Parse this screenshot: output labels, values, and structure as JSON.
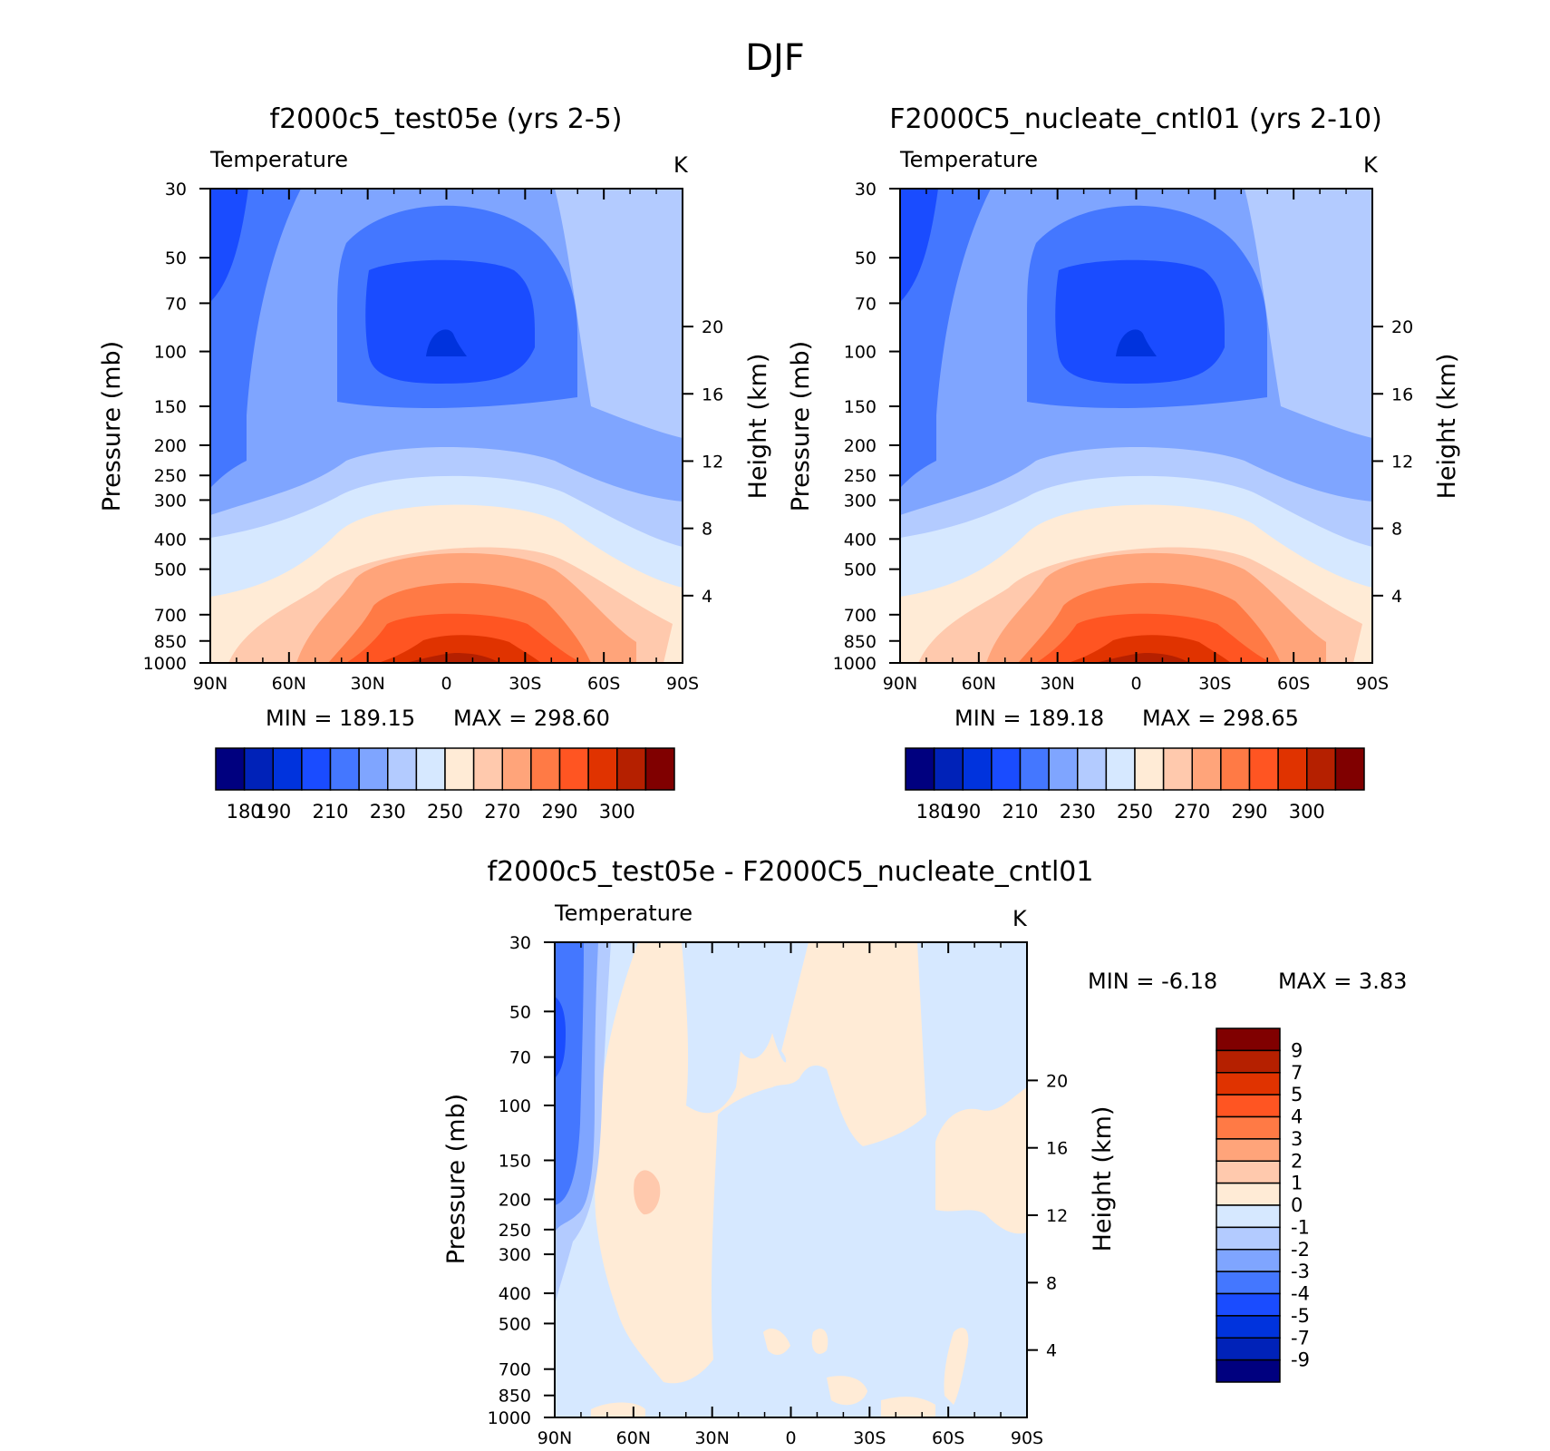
{
  "figure_title": "DJF",
  "chart_data": [
    {
      "type": "heatmap",
      "panel": "top-left",
      "title": "f2000c5_test05e (yrs 2-5)",
      "variable": "Temperature",
      "units": "K",
      "xlabel": "",
      "ylabel": "Pressure (mb)",
      "ylabel_right": "Height (km)",
      "x_ticks": [
        "90N",
        "60N",
        "30N",
        "0",
        "30S",
        "60S",
        "90S"
      ],
      "y_ticks": [
        "30",
        "50",
        "70",
        "100",
        "150",
        "200",
        "250",
        "300",
        "400",
        "500",
        "700",
        "850",
        "1000"
      ],
      "y_ticks_right": [
        "20",
        "16",
        "12",
        "8",
        "4"
      ],
      "min_label": "MIN = 189.15",
      "max_label": "MAX = 298.60",
      "min": 189.15,
      "max": 298.6,
      "colorbar": {
        "orientation": "horizontal",
        "tick_labels": [
          "180",
          "190",
          "210",
          "230",
          "250",
          "270",
          "290",
          "300"
        ],
        "colors": [
          "#00007f",
          "#0022b8",
          "#0033dd",
          "#1a4cff",
          "#4477ff",
          "#7fa5ff",
          "#b3cbff",
          "#d6e8ff",
          "#ffebd6",
          "#ffc9ad",
          "#ffa47a",
          "#ff7a45",
          "#ff5522",
          "#e03300",
          "#b52000",
          "#800000"
        ]
      },
      "field": {
        "pattern": "full",
        "cold_core_lat": 0,
        "cold_core_value": 189.15,
        "surface_max_value": 298.6
      }
    },
    {
      "type": "heatmap",
      "panel": "top-right",
      "title": "F2000C5_nucleate_cntl01 (yrs 2-10)",
      "variable": "Temperature",
      "units": "K",
      "xlabel": "",
      "ylabel": "Pressure (mb)",
      "ylabel_right": "Height (km)",
      "x_ticks": [
        "90N",
        "60N",
        "30N",
        "0",
        "30S",
        "60S",
        "90S"
      ],
      "y_ticks": [
        "30",
        "50",
        "70",
        "100",
        "150",
        "200",
        "250",
        "300",
        "400",
        "500",
        "700",
        "850",
        "1000"
      ],
      "y_ticks_right": [
        "20",
        "16",
        "12",
        "8",
        "4"
      ],
      "min_label": "MIN = 189.18",
      "max_label": "MAX = 298.65",
      "min": 189.18,
      "max": 298.65,
      "colorbar": {
        "orientation": "horizontal",
        "tick_labels": [
          "180",
          "190",
          "210",
          "230",
          "250",
          "270",
          "290",
          "300"
        ],
        "colors": [
          "#00007f",
          "#0022b8",
          "#0033dd",
          "#1a4cff",
          "#4477ff",
          "#7fa5ff",
          "#b3cbff",
          "#d6e8ff",
          "#ffebd6",
          "#ffc9ad",
          "#ffa47a",
          "#ff7a45",
          "#ff5522",
          "#e03300",
          "#b52000",
          "#800000"
        ]
      },
      "field": {
        "pattern": "full",
        "cold_core_lat": 0,
        "cold_core_value": 189.18,
        "surface_max_value": 298.65
      }
    },
    {
      "type": "heatmap",
      "panel": "bottom",
      "title": "f2000c5_test05e - F2000C5_nucleate_cntl01",
      "variable": "Temperature",
      "units": "K",
      "xlabel": "",
      "ylabel": "Pressure (mb)",
      "ylabel_right": "Height (km)",
      "x_ticks": [
        "90N",
        "60N",
        "30N",
        "0",
        "30S",
        "60S",
        "90S"
      ],
      "y_ticks": [
        "30",
        "50",
        "70",
        "100",
        "150",
        "200",
        "250",
        "300",
        "400",
        "500",
        "700",
        "850",
        "1000"
      ],
      "y_ticks_right": [
        "20",
        "16",
        "12",
        "8",
        "4"
      ],
      "min_label": "MIN = -6.18",
      "max_label": "MAX = 3.83",
      "min": -6.18,
      "max": 3.83,
      "colorbar": {
        "orientation": "vertical",
        "tick_labels": [
          "9",
          "7",
          "5",
          "4",
          "3",
          "2",
          "1",
          "0",
          "-1",
          "-2",
          "-3",
          "-4",
          "-5",
          "-7",
          "-9"
        ],
        "colors": [
          "#800000",
          "#b52000",
          "#e03300",
          "#ff5522",
          "#ff7a45",
          "#ffa47a",
          "#ffc9ad",
          "#ffebd6",
          "#d6e8ff",
          "#b3cbff",
          "#7fa5ff",
          "#4477ff",
          "#1a4cff",
          "#0033dd",
          "#0022b8",
          "#00007f"
        ]
      },
      "field": {
        "pattern": "difference",
        "background": "#d6e8ff",
        "positive_fill": "#ffebd6"
      }
    }
  ]
}
